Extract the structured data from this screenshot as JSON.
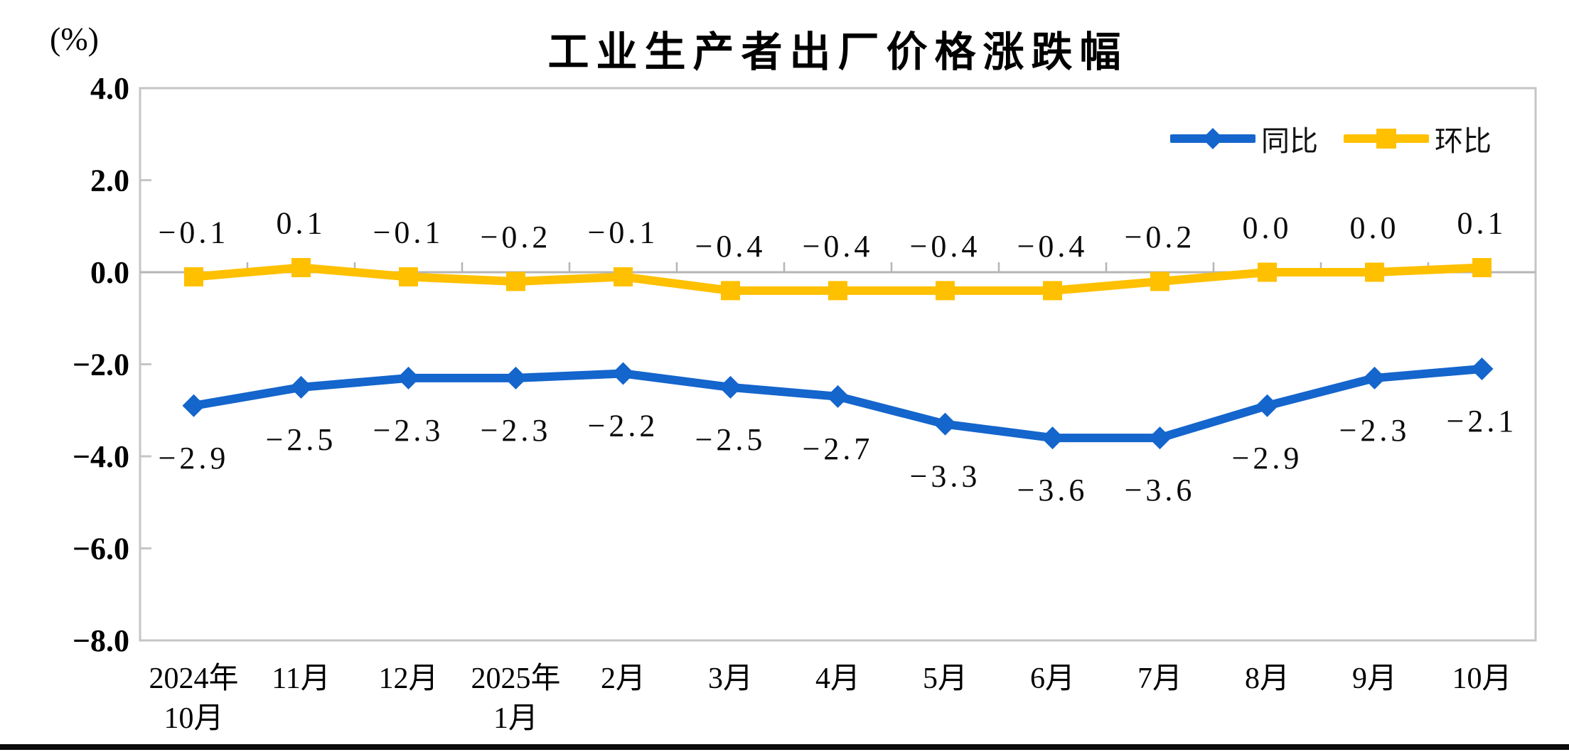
{
  "chart_data": {
    "type": "line",
    "title": "工业生产者出厂价格涨跌幅",
    "unit_label": "(%)",
    "categories": [
      [
        "2024年",
        "10月"
      ],
      [
        "11月"
      ],
      [
        "12月"
      ],
      [
        "2025年",
        "1月"
      ],
      [
        "2月"
      ],
      [
        "3月"
      ],
      [
        "4月"
      ],
      [
        "5月"
      ],
      [
        "6月"
      ],
      [
        "7月"
      ],
      [
        "8月"
      ],
      [
        "9月"
      ],
      [
        "10月"
      ]
    ],
    "series": [
      {
        "name": "同比",
        "color": "#1465CC",
        "marker": "diamond",
        "label_position": "below",
        "values": [
          -2.9,
          -2.5,
          -2.3,
          -2.3,
          -2.2,
          -2.5,
          -2.7,
          -3.3,
          -3.6,
          -3.6,
          -2.9,
          -2.3,
          -2.1
        ],
        "labels": [
          "-2.9",
          "-2.5",
          "-2.3",
          "-2.3",
          "-2.2",
          "-2.5",
          "-2.7",
          "-3.3",
          "-3.6",
          "-3.6",
          "-2.9",
          "-2.3",
          "-2.1"
        ]
      },
      {
        "name": "环比",
        "color": "#FFC000",
        "marker": "square",
        "label_position": "above",
        "values": [
          -0.1,
          0.1,
          -0.1,
          -0.2,
          -0.1,
          -0.4,
          -0.4,
          -0.4,
          -0.4,
          -0.2,
          0.0,
          0.0,
          0.1
        ],
        "labels": [
          "-0.1",
          "0.1",
          "-0.1",
          "-0.2",
          "-0.1",
          "-0.4",
          "-0.4",
          "-0.4",
          "-0.4",
          "-0.2",
          "0.0",
          "0.0",
          "0.1"
        ]
      }
    ],
    "y_axis": {
      "min": -8.0,
      "max": 4.0,
      "ticks": [
        4.0,
        2.0,
        0.0,
        -2.0,
        -4.0,
        -6.0,
        -8.0
      ],
      "tick_labels": [
        "4.0",
        "2.0",
        "0.0",
        "-2.0",
        "-4.0",
        "-6.0",
        "-8.0"
      ]
    },
    "legend_position": "top-right",
    "grid": false,
    "zero_line": true,
    "colors": {
      "axis": "#C6C6C6",
      "zero_line": "#B5B5B5",
      "text": "#000000"
    }
  }
}
